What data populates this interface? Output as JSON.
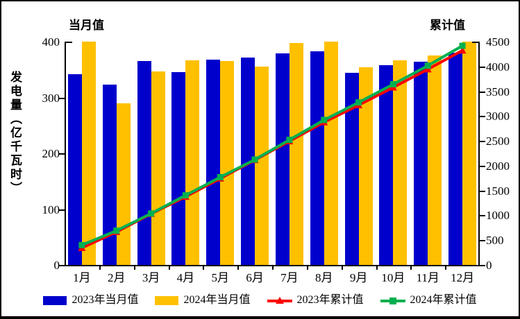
{
  "chart_data": {
    "type": "combo-bar-line",
    "categories": [
      "1月",
      "2月",
      "3月",
      "4月",
      "5月",
      "6月",
      "7月",
      "8月",
      "9月",
      "10月",
      "11月",
      "12月"
    ],
    "series": [
      {
        "name": "2023年当月值",
        "type": "bar",
        "axis": "left",
        "color": "#0000CC",
        "values": [
          342,
          323,
          365,
          345,
          368,
          371,
          379,
          383,
          344,
          358,
          364,
          380
        ]
      },
      {
        "name": "2024年当月值",
        "type": "bar",
        "axis": "left",
        "color": "#FFC000",
        "values": [
          400,
          290,
          346,
          367,
          365,
          355,
          398,
          400,
          354,
          366,
          375,
          400
        ]
      },
      {
        "name": "2023年累计值",
        "type": "line",
        "axis": "right",
        "color": "#FF0000",
        "marker": "triangle",
        "values": [
          342,
          665,
          1030,
          1375,
          1743,
          2114,
          2493,
          2876,
          3220,
          3578,
          3942,
          4322
        ]
      },
      {
        "name": "2024年累计值",
        "type": "line",
        "axis": "right",
        "color": "#00B050",
        "marker": "square",
        "values": [
          400,
          690,
          1036,
          1403,
          1768,
          2123,
          2521,
          2921,
          3275,
          3641,
          4016,
          4416
        ]
      }
    ],
    "left_axis": {
      "title": "当月值",
      "min": 0,
      "max": 400,
      "ticks": [
        0,
        100,
        200,
        300,
        400
      ]
    },
    "right_axis": {
      "title": "累计值",
      "min": 0,
      "max": 4500,
      "ticks": [
        0,
        500,
        1000,
        1500,
        2000,
        2500,
        3000,
        3500,
        4000,
        4500
      ]
    },
    "y_axis_label": "发电量（亿千瓦时）",
    "grid": false,
    "legend_position": "bottom",
    "plot_bg": "#FFFFFF",
    "axis_color": "#000000"
  }
}
